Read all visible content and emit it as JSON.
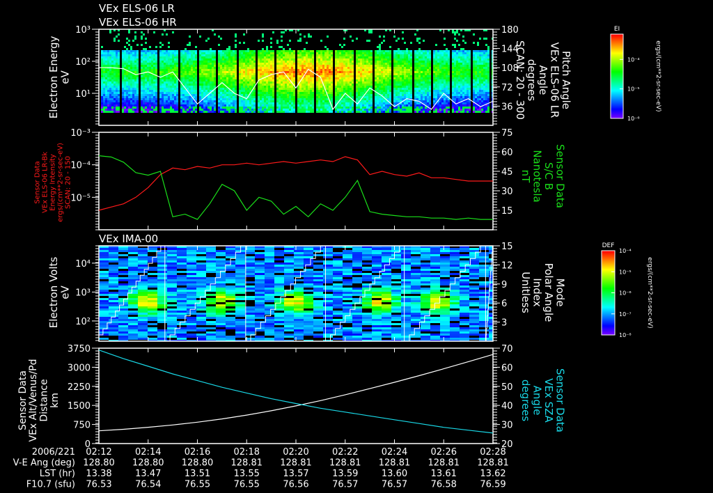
{
  "titles": {
    "panel1_line1": "VEx ELS-06 LR",
    "panel1_line2": "VEx ELS-06 HR",
    "panel3": "VEx IMA-00"
  },
  "labels": {
    "p1_left": [
      "Electron Energy",
      "eV"
    ],
    "p1_right": [
      "Pitch Angle",
      "VEx ELS-06 LR",
      "Angle",
      "degrees",
      "SCAN: 20 - 300"
    ],
    "p2_left": [
      "Sensor Data",
      "VEx ELS-06 LR-Bk",
      "Energy Intensity",
      "ergs/(cm**2-sr-sec-eV)",
      "SCAN: 20 - 150"
    ],
    "p2_right": [
      "Sensor Data",
      "S/C B",
      "Nanotesla",
      "nT"
    ],
    "p3_left": [
      "Electron Volts",
      "eV"
    ],
    "p3_right": [
      "Mode",
      "Polar Angle",
      "Index",
      "Unitless"
    ],
    "p4_left": [
      "Sensor Data",
      "VEx Alt/Venus/Pd",
      "Distance",
      "km"
    ],
    "p4_right": [
      "Sensor Data",
      "VEx SZA",
      "Angle",
      "degrees"
    ]
  },
  "colorbars": [
    {
      "title": "EI",
      "units": "ergs/(cm**2-sr-sec-eV)",
      "ticks": [
        "10⁻⁴",
        "10⁻⁵",
        "10⁻⁶"
      ]
    },
    {
      "title": "DEF",
      "units": "ergs/(cm**2-sr-sec-eV)",
      "ticks": [
        "10⁻⁴",
        "10⁻⁵",
        "10⁻⁶",
        "10⁻⁷",
        "10⁻⁸"
      ]
    }
  ],
  "footer": {
    "row_labels": [
      "2006/221",
      "V-E Ang (deg)",
      "LST (hr)",
      "F10.7 (sfu)"
    ],
    "times": [
      "02:12",
      "02:14",
      "02:16",
      "02:18",
      "02:20",
      "02:22",
      "02:24",
      "02:26",
      "02:28"
    ],
    "ve_ang": [
      "128.80",
      "128.80",
      "128.80",
      "128.81",
      "128.81",
      "128.81",
      "128.81",
      "128.81",
      "128.81"
    ],
    "lst": [
      "13.38",
      "13.47",
      "13.51",
      "13.55",
      "13.57",
      "13.59",
      "13.60",
      "13.61",
      "13.62"
    ],
    "f107": [
      "76.53",
      "76.54",
      "76.55",
      "76.55",
      "76.56",
      "76.57",
      "76.57",
      "76.58",
      "76.59"
    ]
  },
  "colors": {
    "red": "#ff1a1a",
    "green": "#1adf1a",
    "cyan": "#19d9e8",
    "white": "#ffffff"
  },
  "chart_data": [
    {
      "type": "heatmap",
      "title": "VEx ELS-06 LR / VEx ELS-06 HR",
      "ylabel": "Electron Energy (eV)",
      "ylim_log10": [
        0,
        3
      ],
      "yticks": [
        "10³",
        "10²",
        "10¹"
      ],
      "y2label": "Pitch Angle (degrees)",
      "y2lim": [
        0,
        180
      ],
      "y2ticks": [
        "180",
        "144",
        "108",
        "72",
        "36"
      ],
      "time_range_min": [
        0,
        16
      ],
      "peak_energy_log10": 1.7,
      "pitch_angle_series": [
        108,
        108,
        106,
        95,
        100,
        90,
        100,
        70,
        40,
        60,
        80,
        60,
        50,
        85,
        95,
        100,
        70,
        105,
        90,
        30,
        60,
        40,
        70,
        55,
        35,
        50,
        45,
        30,
        60,
        40,
        50,
        35,
        45
      ]
    },
    {
      "type": "line",
      "ylabel": "Energy Intensity ergs/(cm**2-sr-sec-eV)",
      "ylim_log10": [
        -6,
        -3
      ],
      "yticks": [
        "10⁻³",
        "10⁻⁴",
        "10⁻⁵"
      ],
      "y2label": "S/C B (nT)",
      "y2lim": [
        0,
        75
      ],
      "y2ticks": [
        "75",
        "60",
        "45",
        "30",
        "15"
      ],
      "x_step_min": 0.5,
      "series": [
        {
          "name": "VEx ELS-06 LR-Bk Energy Intensity (log10)",
          "color": "#ff1a1a",
          "values": [
            -5.4,
            -5.3,
            -5.2,
            -5.0,
            -4.7,
            -4.3,
            -4.1,
            -4.15,
            -4.05,
            -4.1,
            -4.0,
            -4.0,
            -3.95,
            -4.0,
            -3.95,
            -3.9,
            -3.95,
            -3.9,
            -3.85,
            -3.9,
            -3.75,
            -3.85,
            -4.3,
            -4.2,
            -4.3,
            -4.35,
            -4.25,
            -4.4,
            -4.4,
            -4.45,
            -4.5,
            -4.5,
            -4.5
          ]
        },
        {
          "name": "S/C B (nT)",
          "color": "#1adf1a",
          "values": [
            57,
            56,
            52,
            44,
            42,
            45,
            10,
            12,
            8,
            20,
            35,
            30,
            15,
            25,
            22,
            12,
            18,
            10,
            20,
            15,
            25,
            38,
            14,
            12,
            11,
            10,
            10,
            9,
            9,
            8,
            9,
            8,
            8
          ]
        }
      ]
    },
    {
      "type": "heatmap",
      "title": "VEx IMA-00",
      "ylabel": "Electron Volts (eV)",
      "ylim_log10": [
        1.3,
        4.6
      ],
      "yticks": [
        "10⁴",
        "10³",
        "10²"
      ],
      "y2label": "Mode Polar Angle Index (Unitless)",
      "y2lim": [
        0,
        15
      ],
      "y2ticks": [
        "15",
        "12",
        "9",
        "6",
        "3"
      ],
      "sweep_reset_min": [
        2.68,
        5.96,
        9.2,
        12.4,
        15.7
      ],
      "blob_centers_min": [
        2.0,
        5.0,
        8.0,
        11.4,
        13.8
      ],
      "blob_energy_log10": 2.7
    },
    {
      "type": "line",
      "ylabel": "VEx Alt/Venus/Pd Distance (km)",
      "ylim": [
        0,
        3750
      ],
      "yticks": [
        "3750",
        "3000",
        "2250",
        "1500",
        "750",
        "0"
      ],
      "y2label": "VEx SZA Angle (degrees)",
      "y2lim": [
        20,
        70
      ],
      "y2ticks": [
        "70",
        "60",
        "50",
        "40",
        "30",
        "20"
      ],
      "x": [
        "02:12",
        "02:13",
        "02:14",
        "02:15",
        "02:16",
        "02:17",
        "02:18",
        "02:19",
        "02:20",
        "02:21",
        "02:22",
        "02:23",
        "02:24",
        "02:25",
        "02:26",
        "02:27",
        "02:28"
      ],
      "series": [
        {
          "name": "VEx Alt/Venus/Pd (km)",
          "color": "#ffffff",
          "values": [
            500,
            560,
            640,
            730,
            840,
            970,
            1120,
            1290,
            1480,
            1690,
            1920,
            2160,
            2410,
            2670,
            2940,
            3220,
            3500
          ]
        },
        {
          "name": "VEx SZA (degrees)",
          "color": "#19d9e8",
          "values": [
            69,
            64.5,
            60.5,
            56.5,
            53,
            49.5,
            46.5,
            43.5,
            41,
            38.5,
            36.5,
            34.5,
            32.5,
            30.5,
            28.5,
            27,
            25.5
          ]
        }
      ]
    }
  ]
}
